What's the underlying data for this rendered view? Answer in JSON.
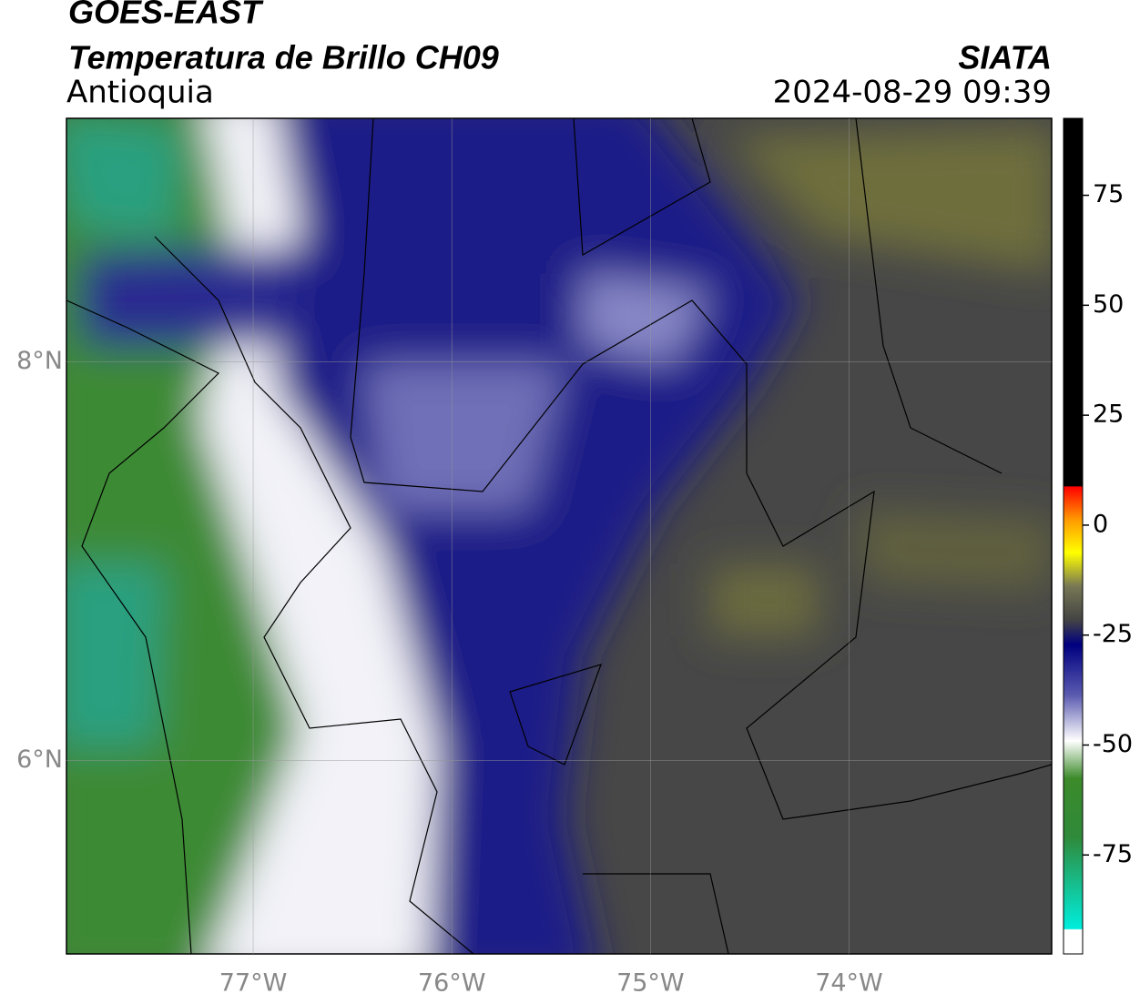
{
  "header": {
    "title": "GOES-EAST",
    "subtitle": "Temperatura de Brillo CH09",
    "region": "Antioquia",
    "source": "SIATA",
    "timestamp": "2024-08-29 09:39"
  },
  "map": {
    "lonlim": [
      -77.94,
      -72.98
    ],
    "latlim": [
      5.03,
      9.22
    ],
    "lonticks": [
      {
        "value": -77,
        "label": "77°W"
      },
      {
        "value": -76,
        "label": "76°W"
      },
      {
        "value": -75,
        "label": "75°W"
      },
      {
        "value": -74,
        "label": "74°W"
      }
    ],
    "latticks": [
      {
        "value": 8,
        "label": "8°N"
      },
      {
        "value": 6,
        "label": "6°N"
      }
    ],
    "grid": true
  },
  "colorbar": {
    "lim": [
      -97.5,
      92.5
    ],
    "ticks": [
      75,
      50,
      25,
      0,
      -25,
      -50,
      -75
    ]
  }
}
